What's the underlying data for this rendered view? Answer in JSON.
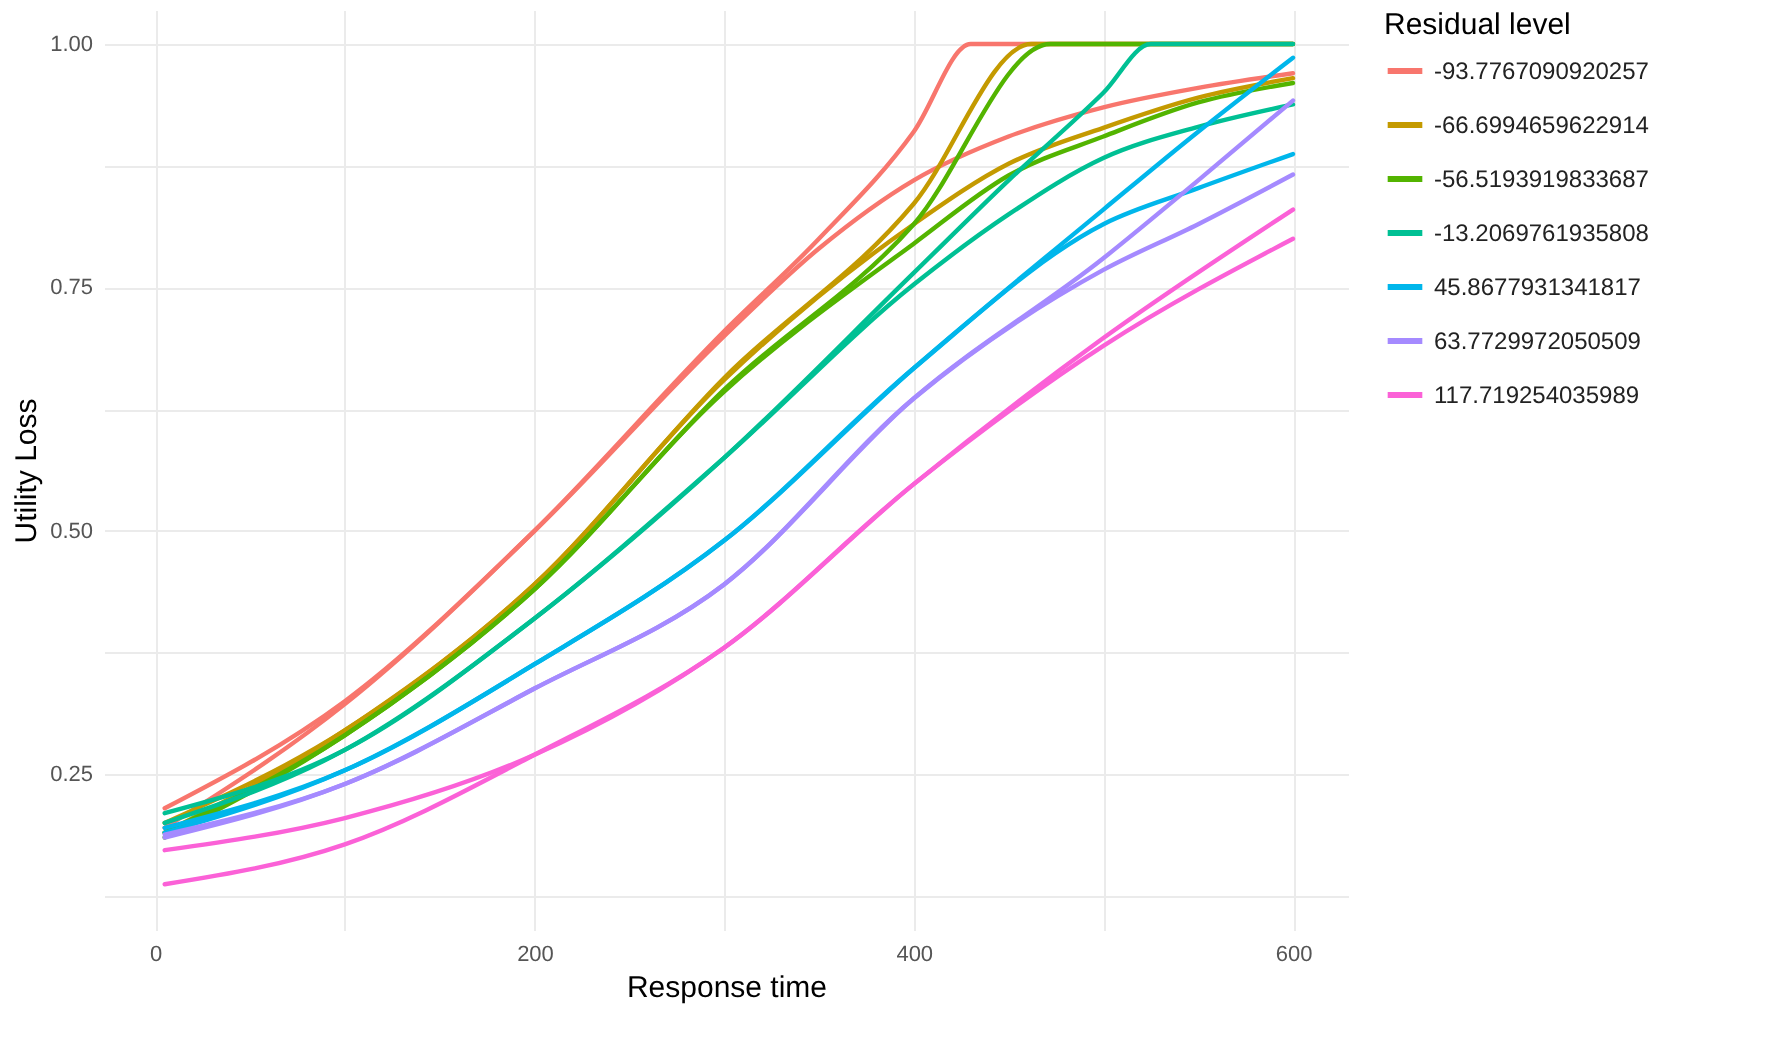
{
  "chart_data": {
    "type": "line",
    "xlabel": "Response time",
    "ylabel": "Utility Loss",
    "legend_title": "Residual level",
    "legend": "right",
    "grid": true,
    "xlim": [
      -27,
      629
    ],
    "xticks": [
      0,
      {
        "value": 100,
        "label": null
      },
      200,
      {
        "value": 300,
        "label": null
      },
      400,
      {
        "value": 500,
        "label": null
      },
      600
    ],
    "ylim": [
      0.09,
      1.035
    ],
    "yticks": [
      {
        "value": 0.125,
        "label": null
      },
      {
        "value": 0.25,
        "label": "0.25"
      },
      {
        "value": 0.375,
        "label": null
      },
      {
        "value": 0.5,
        "label": "0.50"
      },
      {
        "value": 0.625,
        "label": null
      },
      {
        "value": 0.75,
        "label": "0.75"
      },
      {
        "value": 0.875,
        "label": null
      },
      {
        "value": 1.0,
        "label": "1.00"
      }
    ],
    "series": [
      {
        "name": "-93.7767090920257",
        "color": "#f8766d",
        "x": [
          5,
          100,
          200,
          300,
          350,
          400,
          430,
          600
        ],
        "values": [
          0.195,
          0.322,
          0.5,
          0.705,
          0.8,
          0.91,
          1.0,
          1.0
        ]
      },
      {
        "color": "#f8766d",
        "x": [
          5,
          100,
          200,
          300,
          350,
          400,
          450,
          500,
          550,
          600
        ],
        "values": [
          0.215,
          0.325,
          0.5,
          0.7,
          0.79,
          0.86,
          0.905,
          0.935,
          0.955,
          0.97
        ]
      },
      {
        "name": "-66.6994659622914",
        "color": "#c49a00",
        "x": [
          5,
          100,
          200,
          300,
          400,
          462,
          600
        ],
        "values": [
          0.19,
          0.295,
          0.445,
          0.657,
          0.836,
          1.0,
          1.0
        ]
      },
      {
        "color": "#c49a00",
        "x": [
          5,
          100,
          200,
          300,
          400,
          450,
          500,
          550,
          600
        ],
        "values": [
          0.2,
          0.295,
          0.445,
          0.655,
          0.815,
          0.877,
          0.914,
          0.945,
          0.965
        ]
      },
      {
        "name": "-56.5193919833687",
        "color": "#53b400",
        "x": [
          5,
          100,
          200,
          300,
          400,
          472,
          600
        ],
        "values": [
          0.185,
          0.29,
          0.44,
          0.645,
          0.815,
          1.0,
          1.0
        ]
      },
      {
        "color": "#53b400",
        "x": [
          5,
          100,
          200,
          300,
          400,
          450,
          500,
          550,
          600
        ],
        "values": [
          0.19,
          0.29,
          0.44,
          0.643,
          0.795,
          0.865,
          0.905,
          0.94,
          0.96
        ]
      },
      {
        "name": "-13.2069761935808",
        "color": "#00c094",
        "x": [
          5,
          100,
          200,
          300,
          400,
          450,
          500,
          525,
          600
        ],
        "values": [
          0.2,
          0.275,
          0.41,
          0.575,
          0.765,
          0.86,
          0.95,
          1.0,
          1.0
        ]
      },
      {
        "color": "#00c094",
        "x": [
          5,
          100,
          200,
          300,
          400,
          450,
          500,
          550,
          600
        ],
        "values": [
          0.21,
          0.275,
          0.41,
          0.575,
          0.753,
          0.825,
          0.883,
          0.915,
          0.938
        ]
      },
      {
        "name": "45.8677931341817",
        "color": "#00b6eb",
        "x": [
          5,
          100,
          200,
          300,
          400,
          500,
          550,
          600
        ],
        "values": [
          0.19,
          0.254,
          0.363,
          0.49,
          0.667,
          0.83,
          0.91,
          0.986
        ]
      },
      {
        "color": "#00b6eb",
        "x": [
          5,
          100,
          200,
          300,
          400,
          500,
          550,
          600
        ],
        "values": [
          0.195,
          0.254,
          0.363,
          0.49,
          0.667,
          0.815,
          0.852,
          0.887
        ]
      },
      {
        "name": "63.7729972050509",
        "color": "#a58aff",
        "x": [
          5,
          100,
          200,
          300,
          400,
          500,
          550,
          600
        ],
        "values": [
          0.185,
          0.24,
          0.338,
          0.445,
          0.636,
          0.78,
          0.86,
          0.942
        ]
      },
      {
        "color": "#a58aff",
        "x": [
          5,
          100,
          200,
          300,
          400,
          500,
          550,
          600
        ],
        "values": [
          0.188,
          0.24,
          0.338,
          0.445,
          0.636,
          0.768,
          0.815,
          0.866
        ]
      },
      {
        "name": "117.719254035989",
        "color": "#fb61d7",
        "x": [
          5,
          100,
          200,
          300,
          400,
          500,
          600
        ],
        "values": [
          0.137,
          0.178,
          0.27,
          0.38,
          0.548,
          0.698,
          0.83
        ]
      },
      {
        "color": "#fb61d7",
        "x": [
          5,
          100,
          200,
          300,
          400,
          500,
          600
        ],
        "values": [
          0.172,
          0.205,
          0.27,
          0.38,
          0.548,
          0.69,
          0.8
        ]
      }
    ]
  }
}
